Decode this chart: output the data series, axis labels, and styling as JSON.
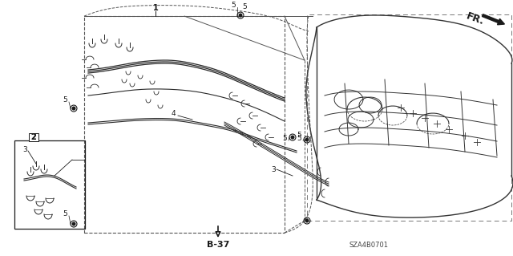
{
  "bg_color": "#ffffff",
  "line_color": "#1a1a1a",
  "dashed_color": "#555555",
  "fig_width": 6.4,
  "fig_height": 3.19,
  "dpi": 100,
  "ref_code": "SZA4B0701",
  "page_ref": "B-37",
  "fr_label": "FR."
}
